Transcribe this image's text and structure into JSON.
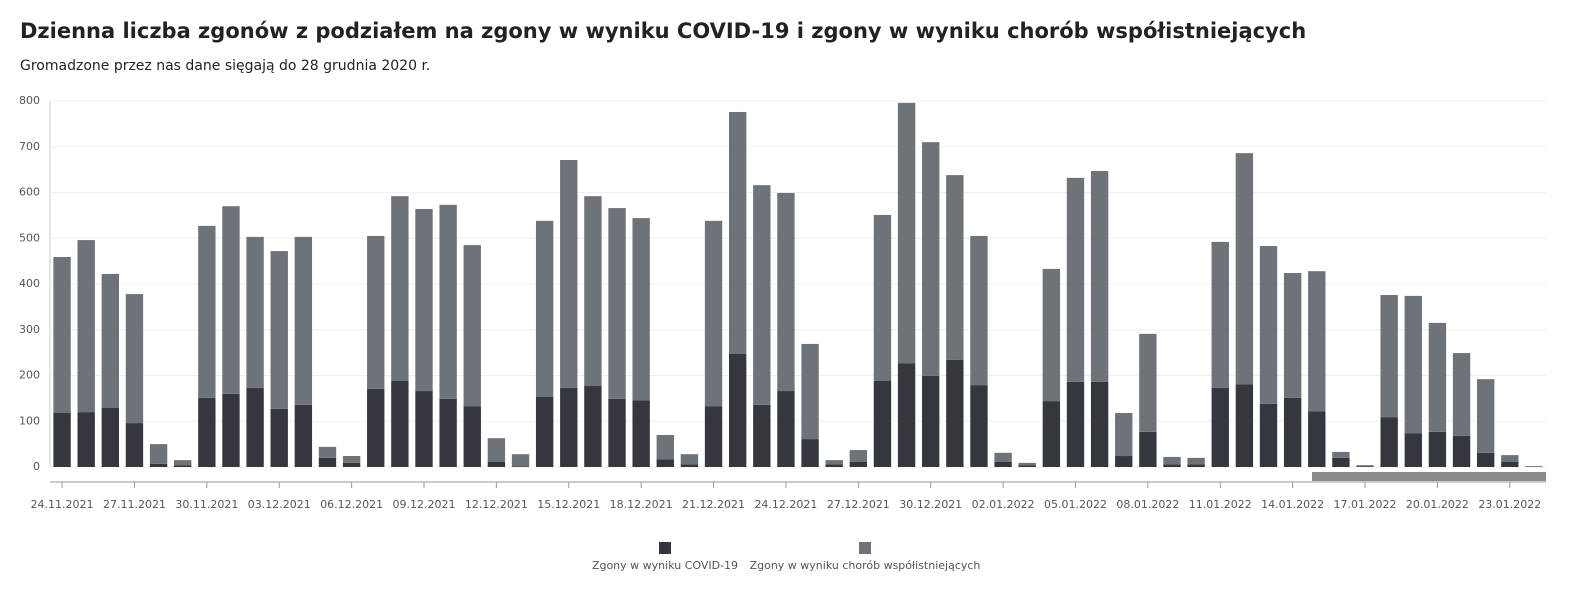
{
  "chart_data": {
    "type": "stacked_bar",
    "title": "Dzienna liczba zgonów z podziałem na zgony w wyniku COVID-19 i zgony w wyniku chorób współistniejących",
    "subtitle": "Gromadzone przez nas dane sięgają do 28 grudnia 2020 r.",
    "categories": [
      "24.11.2021",
      null,
      null,
      "27.11.2021",
      null,
      null,
      "30.11.2021",
      null,
      null,
      "03.12.2021",
      null,
      null,
      "06.12.2021",
      null,
      null,
      "09.12.2021",
      null,
      null,
      "12.12.2021",
      null,
      null,
      "15.12.2021",
      null,
      null,
      "18.12.2021",
      null,
      null,
      "21.12.2021",
      null,
      null,
      "24.12.2021",
      null,
      null,
      "27.12.2021",
      null,
      null,
      "30.12.2021",
      null,
      null,
      "02.01.2022",
      null,
      null,
      "05.01.2022",
      null,
      null,
      "08.01.2022",
      null,
      null,
      "11.01.2022",
      null,
      null,
      "14.01.2022",
      null,
      null,
      "17.01.2022",
      null,
      null,
      "20.01.2022",
      null,
      null,
      "23.01.2022",
      null
    ],
    "series": [
      {
        "name": "Zgony w wyniku COVID-19",
        "color": "#34383e",
        "values": [
          118,
          120,
          129,
          96,
          7,
          4,
          151,
          160,
          173,
          127,
          136,
          20,
          9,
          171,
          188,
          166,
          149,
          133,
          11,
          1,
          153,
          173,
          177,
          149,
          146,
          17,
          6,
          133,
          247,
          136,
          166,
          61,
          6,
          11,
          188,
          227,
          199,
          234,
          179,
          11,
          4,
          144,
          186,
          186,
          24,
          77,
          6,
          6,
          173,
          181,
          138,
          151,
          122,
          20,
          1,
          109,
          74,
          77,
          68,
          31,
          11,
          0
        ]
      },
      {
        "name": "Zgony w wyniku chorób współistniejących",
        "color": "#6e737a",
        "values": [
          341,
          376,
          293,
          282,
          43,
          11,
          376,
          410,
          330,
          345,
          367,
          24,
          15,
          334,
          404,
          398,
          424,
          352,
          52,
          27,
          385,
          498,
          415,
          417,
          398,
          53,
          22,
          405,
          529,
          480,
          433,
          208,
          9,
          26,
          363,
          569,
          511,
          404,
          326,
          20,
          5,
          289,
          446,
          461,
          94,
          214,
          16,
          14,
          319,
          505,
          345,
          273,
          306,
          13,
          3,
          267,
          300,
          238,
          181,
          161,
          15,
          2
        ]
      }
    ],
    "ylim": [
      0,
      800
    ],
    "yticks": [
      0,
      100,
      200,
      300,
      400,
      500,
      600,
      700,
      800
    ],
    "grid": true
  }
}
